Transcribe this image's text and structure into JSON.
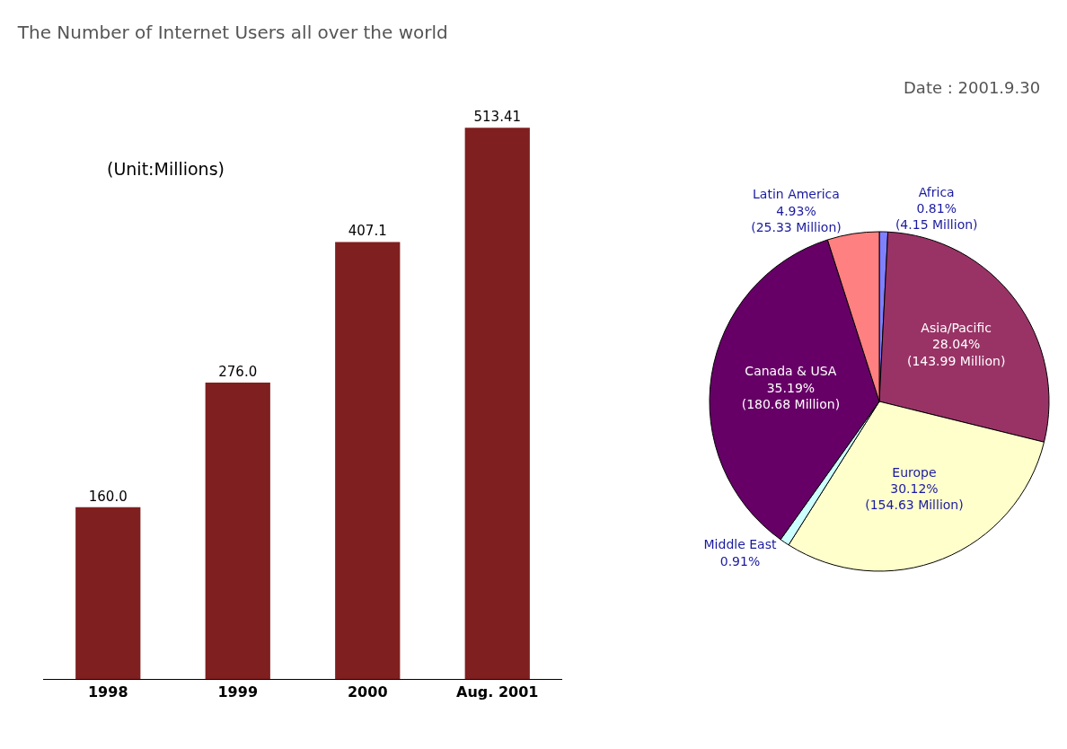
{
  "chart_data": [
    {
      "type": "bar",
      "title": "The Number of Internet Users all over the world",
      "categories": [
        "1998",
        "1999",
        "2000",
        "Aug. 2001"
      ],
      "values": [
        160.0,
        276.0,
        407.1,
        513.41
      ],
      "value_labels": [
        "160.0",
        "276.0",
        "407.1",
        "513.41"
      ],
      "color": "#7f1f1f",
      "annotations": [
        "(Unit:Millions)"
      ],
      "legend": false,
      "tick_labels": "x"
    },
    {
      "type": "pie",
      "categories": [
        "Africa",
        "Asia/Pacific",
        "Europe",
        "Middle East",
        "Canada & USA",
        "Latin America"
      ],
      "values": [
        0.81,
        28.04,
        30.12,
        0.91,
        35.19,
        4.93
      ],
      "value_labels": [
        "0.81%\n(4.15 Million)",
        "28.04%\n(143.99 Million)",
        "30.12%\n(154.63 Million)",
        "0.91%",
        "35.19%\n(180.68 Million)",
        "4.93%\n(25.33 Million)"
      ],
      "colors": [
        "#8080ff",
        "#993366",
        "#ffffcc",
        "#ccffff",
        "#660066",
        "#ff8080"
      ],
      "annotations": [
        "Date : 2001.9.30"
      ],
      "legend": false
    }
  ]
}
